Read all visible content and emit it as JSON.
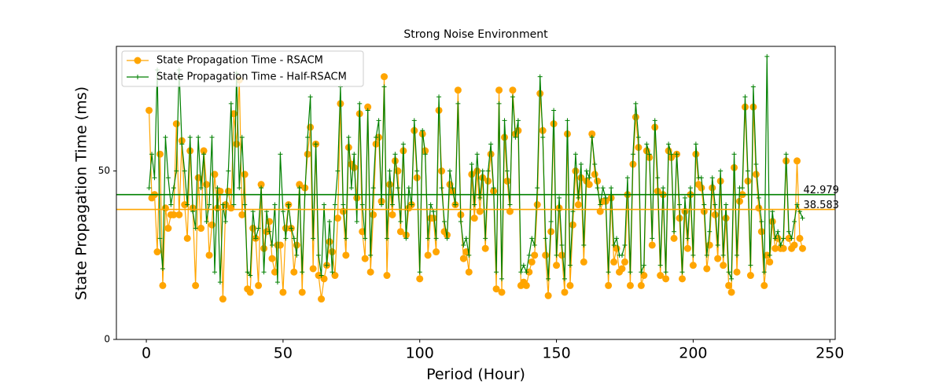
{
  "chart_data": {
    "type": "line",
    "title": "Strong Noise Environment",
    "xlabel": "Period (Hour)",
    "ylabel": "State Propagation Time (ms)",
    "x": [
      1,
      2,
      3,
      4,
      5,
      6,
      7,
      8,
      9,
      10,
      11,
      12,
      13,
      14,
      15,
      16,
      17,
      18,
      19,
      20,
      21,
      22,
      23,
      24,
      25,
      26,
      27,
      28,
      29,
      30,
      31,
      32,
      33,
      34,
      35,
      36,
      37,
      38,
      39,
      40,
      41,
      42,
      43,
      44,
      45,
      46,
      47,
      48,
      49,
      50,
      51,
      52,
      53,
      54,
      55,
      56,
      57,
      58,
      59,
      60,
      61,
      62,
      63,
      64,
      65,
      66,
      67,
      68,
      69,
      70,
      71,
      72,
      73,
      74,
      75,
      76,
      77,
      78,
      79,
      80,
      81,
      82,
      83,
      84,
      85,
      86,
      87,
      88,
      89,
      90,
      91,
      92,
      93,
      94,
      95,
      96,
      97,
      98,
      99,
      100,
      101,
      102,
      103,
      104,
      105,
      106,
      107,
      108,
      109,
      110,
      111,
      112,
      113,
      114,
      115,
      116,
      117,
      118,
      119,
      120,
      121,
      122,
      123,
      124,
      125,
      126,
      127,
      128,
      129,
      130,
      131,
      132,
      133,
      134,
      135,
      136,
      137,
      138,
      139,
      140,
      141,
      142,
      143,
      144,
      145,
      146,
      147,
      148,
      149,
      150,
      151,
      152,
      153,
      154,
      155,
      156,
      157,
      158,
      159,
      160,
      161,
      162,
      163,
      164,
      165,
      166,
      167,
      168,
      169,
      170,
      171,
      172,
      173,
      174,
      175,
      176,
      177,
      178,
      179,
      180,
      181,
      182,
      183,
      184,
      185,
      186,
      187,
      188,
      189,
      190,
      191,
      192,
      193,
      194,
      195,
      196,
      197,
      198,
      199,
      200,
      201,
      202,
      203,
      204,
      205,
      206,
      207,
      208,
      209,
      210,
      211,
      212,
      213,
      214,
      215,
      216,
      217,
      218,
      219,
      220,
      221,
      222,
      223,
      224,
      225,
      226,
      227,
      228,
      229,
      230,
      231,
      232,
      233,
      234,
      235,
      236,
      237,
      238,
      239,
      240
    ],
    "series": [
      {
        "name": "State Propagation Time - RSACM",
        "color": "#ffa500",
        "marker": "o",
        "values": [
          68,
          42,
          43,
          26,
          55,
          16,
          39,
          33,
          37,
          37,
          64,
          37,
          59,
          40,
          30,
          56,
          39,
          16,
          48,
          33,
          56,
          46,
          25,
          34,
          49,
          39,
          44,
          12,
          40,
          44,
          39,
          67,
          58,
          77,
          37,
          49,
          15,
          14,
          33,
          30,
          16,
          46,
          27,
          32,
          35,
          24,
          20,
          28,
          28,
          14,
          33,
          40,
          33,
          20,
          28,
          46,
          14,
          45,
          55,
          63,
          21,
          58,
          19,
          12,
          18,
          22,
          29,
          26,
          19,
          36,
          70,
          38,
          25,
          57,
          52,
          51,
          42,
          67,
          32,
          24,
          69,
          20,
          37,
          58,
          60,
          41,
          78,
          19,
          46,
          37,
          53,
          50,
          32,
          56,
          31,
          39,
          40,
          62,
          48,
          18,
          61,
          56,
          25,
          36,
          36,
          26,
          68,
          50,
          32,
          31,
          46,
          44,
          40,
          74,
          37,
          24,
          26,
          20,
          49,
          36,
          50,
          38,
          48,
          27,
          47,
          55,
          44,
          15,
          74,
          14,
          60,
          47,
          38,
          74,
          61,
          62,
          16,
          17,
          16,
          20,
          23,
          25,
          40,
          73,
          62,
          25,
          13,
          32,
          64,
          22,
          39,
          25,
          14,
          61,
          16,
          34,
          50,
          40,
          48,
          23,
          47,
          46,
          61,
          49,
          47,
          38,
          41,
          41,
          16,
          42,
          23,
          27,
          20,
          21,
          23,
          43,
          16,
          52,
          66,
          57,
          16,
          19,
          56,
          54,
          28,
          63,
          44,
          19,
          43,
          18,
          56,
          54,
          30,
          55,
          36,
          18,
          38,
          27,
          43,
          22,
          55,
          46,
          45,
          38,
          21,
          28,
          45,
          37,
          24,
          47,
          22,
          36,
          16,
          14,
          51,
          20,
          41,
          43,
          69,
          47,
          19,
          69,
          49,
          39,
          32,
          16,
          25,
          23,
          35,
          27,
          30,
          27,
          27,
          53,
          30,
          27,
          28,
          53,
          30,
          27
        ]
      },
      {
        "name": "State Propagation Time - Half-RSACM",
        "color": "#008000",
        "marker": "+",
        "values": [
          45,
          55,
          48,
          80,
          30,
          21,
          60,
          48,
          40,
          45,
          50,
          80,
          58,
          50,
          40,
          60,
          38,
          33,
          60,
          45,
          55,
          35,
          40,
          60,
          20,
          45,
          17,
          40,
          35,
          50,
          70,
          40,
          79,
          45,
          60,
          40,
          20,
          19,
          38,
          30,
          33,
          45,
          20,
          38,
          32,
          28,
          40,
          17,
          55,
          38,
          30,
          40,
          33,
          30,
          25,
          45,
          20,
          43,
          60,
          72,
          30,
          58,
          25,
          19,
          40,
          22,
          35,
          20,
          40,
          50,
          75,
          40,
          30,
          60,
          45,
          55,
          35,
          70,
          40,
          30,
          68,
          25,
          45,
          60,
          65,
          40,
          75,
          30,
          50,
          40,
          55,
          45,
          35,
          58,
          30,
          45,
          40,
          65,
          50,
          20,
          62,
          55,
          30,
          40,
          38,
          30,
          72,
          45,
          35,
          30,
          50,
          45,
          40,
          70,
          35,
          28,
          30,
          25,
          52,
          40,
          55,
          42,
          50,
          30,
          50,
          58,
          45,
          20,
          70,
          18,
          65,
          50,
          40,
          72,
          60,
          65,
          20,
          22,
          20,
          25,
          30,
          28,
          45,
          78,
          60,
          30,
          18,
          35,
          68,
          25,
          42,
          28,
          18,
          65,
          22,
          38,
          55,
          42,
          52,
          28,
          50,
          48,
          60,
          52,
          45,
          40,
          45,
          42,
          20,
          45,
          28,
          30,
          25,
          25,
          28,
          48,
          20,
          55,
          70,
          60,
          20,
          22,
          58,
          55,
          30,
          65,
          48,
          22,
          45,
          20,
          58,
          55,
          32,
          55,
          40,
          20,
          42,
          30,
          45,
          25,
          58,
          48,
          48,
          40,
          25,
          32,
          48,
          40,
          28,
          50,
          25,
          40,
          20,
          18,
          55,
          25,
          45,
          45,
          72,
          50,
          22,
          75,
          52,
          42,
          35,
          20,
          84,
          25,
          38,
          30,
          32,
          28,
          30,
          55,
          32,
          30,
          35,
          40,
          38,
          36
        ]
      }
    ],
    "hlines": [
      {
        "value": 42.979,
        "color": "#008000"
      },
      {
        "value": 38.583,
        "color": "#ffa500"
      }
    ],
    "xlim": [
      -10.95,
      251.95
    ],
    "xticks": [
      0,
      50,
      100,
      150,
      200,
      250
    ],
    "ylim": [
      0,
      87
    ],
    "yticks": [
      0,
      50
    ],
    "legend": "upper left"
  }
}
